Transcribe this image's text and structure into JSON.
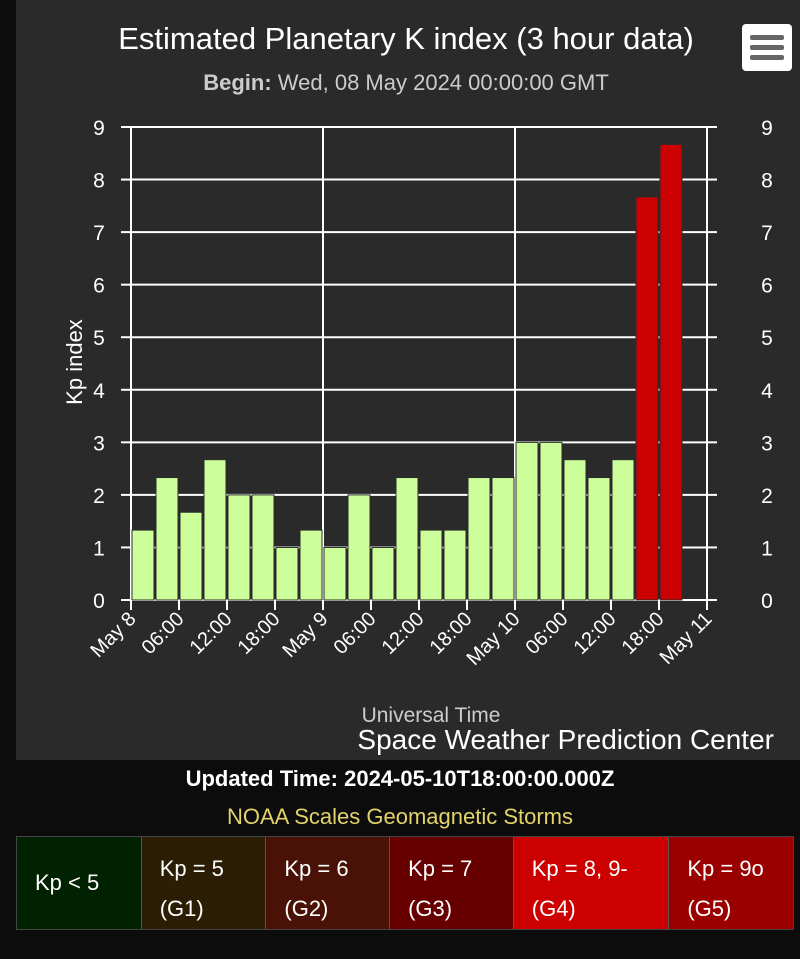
{
  "chart_data": {
    "type": "bar",
    "title": "Estimated Planetary K index (3 hour data)",
    "subtitle_label": "Begin:",
    "subtitle_value": "Wed, 08 May 2024 00:00:00 GMT",
    "ylabel": "Kp index",
    "xlabel": "Universal Time",
    "credit": "Space Weather Prediction Center",
    "ylim": [
      0,
      9
    ],
    "yticks": [
      "0",
      "1",
      "2",
      "3",
      "4",
      "5",
      "6",
      "7",
      "8",
      "9"
    ],
    "xticks": [
      "May 8",
      "06:00",
      "12:00",
      "18:00",
      "May 9",
      "06:00",
      "12:00",
      "18:00",
      "May 10",
      "06:00",
      "12:00",
      "18:00",
      "May 11"
    ],
    "grid": true,
    "values": [
      1.33,
      2.33,
      1.67,
      2.67,
      2.0,
      2.0,
      1.0,
      1.33,
      1.0,
      2.0,
      1.0,
      2.33,
      1.33,
      1.33,
      2.33,
      2.33,
      3.0,
      3.0,
      2.67,
      2.33,
      2.67,
      7.67,
      8.67
    ],
    "colors": [
      "#ccff99",
      "#ccff99",
      "#ccff99",
      "#ccff99",
      "#ccff99",
      "#ccff99",
      "#ccff99",
      "#ccff99",
      "#ccff99",
      "#ccff99",
      "#ccff99",
      "#ccff99",
      "#ccff99",
      "#ccff99",
      "#ccff99",
      "#ccff99",
      "#ccff99",
      "#ccff99",
      "#ccff99",
      "#ccff99",
      "#ccff99",
      "#cc0000",
      "#cc0000"
    ]
  },
  "menu_icon": "hamburger-menu-icon",
  "updated_time": "Updated Time: 2024-05-10T18:00:00.000Z",
  "scales_title": "NOAA Scales Geomagnetic Storms",
  "scales": [
    {
      "label": "Kp < 5",
      "g": "",
      "color": "#002200"
    },
    {
      "label": "Kp = 5",
      "g": "(G1)",
      "color": "#2b1e05"
    },
    {
      "label": "Kp = 6",
      "g": "(G2)",
      "color": "#4a1206"
    },
    {
      "label": "Kp = 7",
      "g": "(G3)",
      "color": "#660000"
    },
    {
      "label": "Kp = 8, 9-",
      "g": "(G4)",
      "color": "#cc0000"
    },
    {
      "label": "Kp = 9o",
      "g": "(G5)",
      "color": "#9a0000"
    }
  ]
}
